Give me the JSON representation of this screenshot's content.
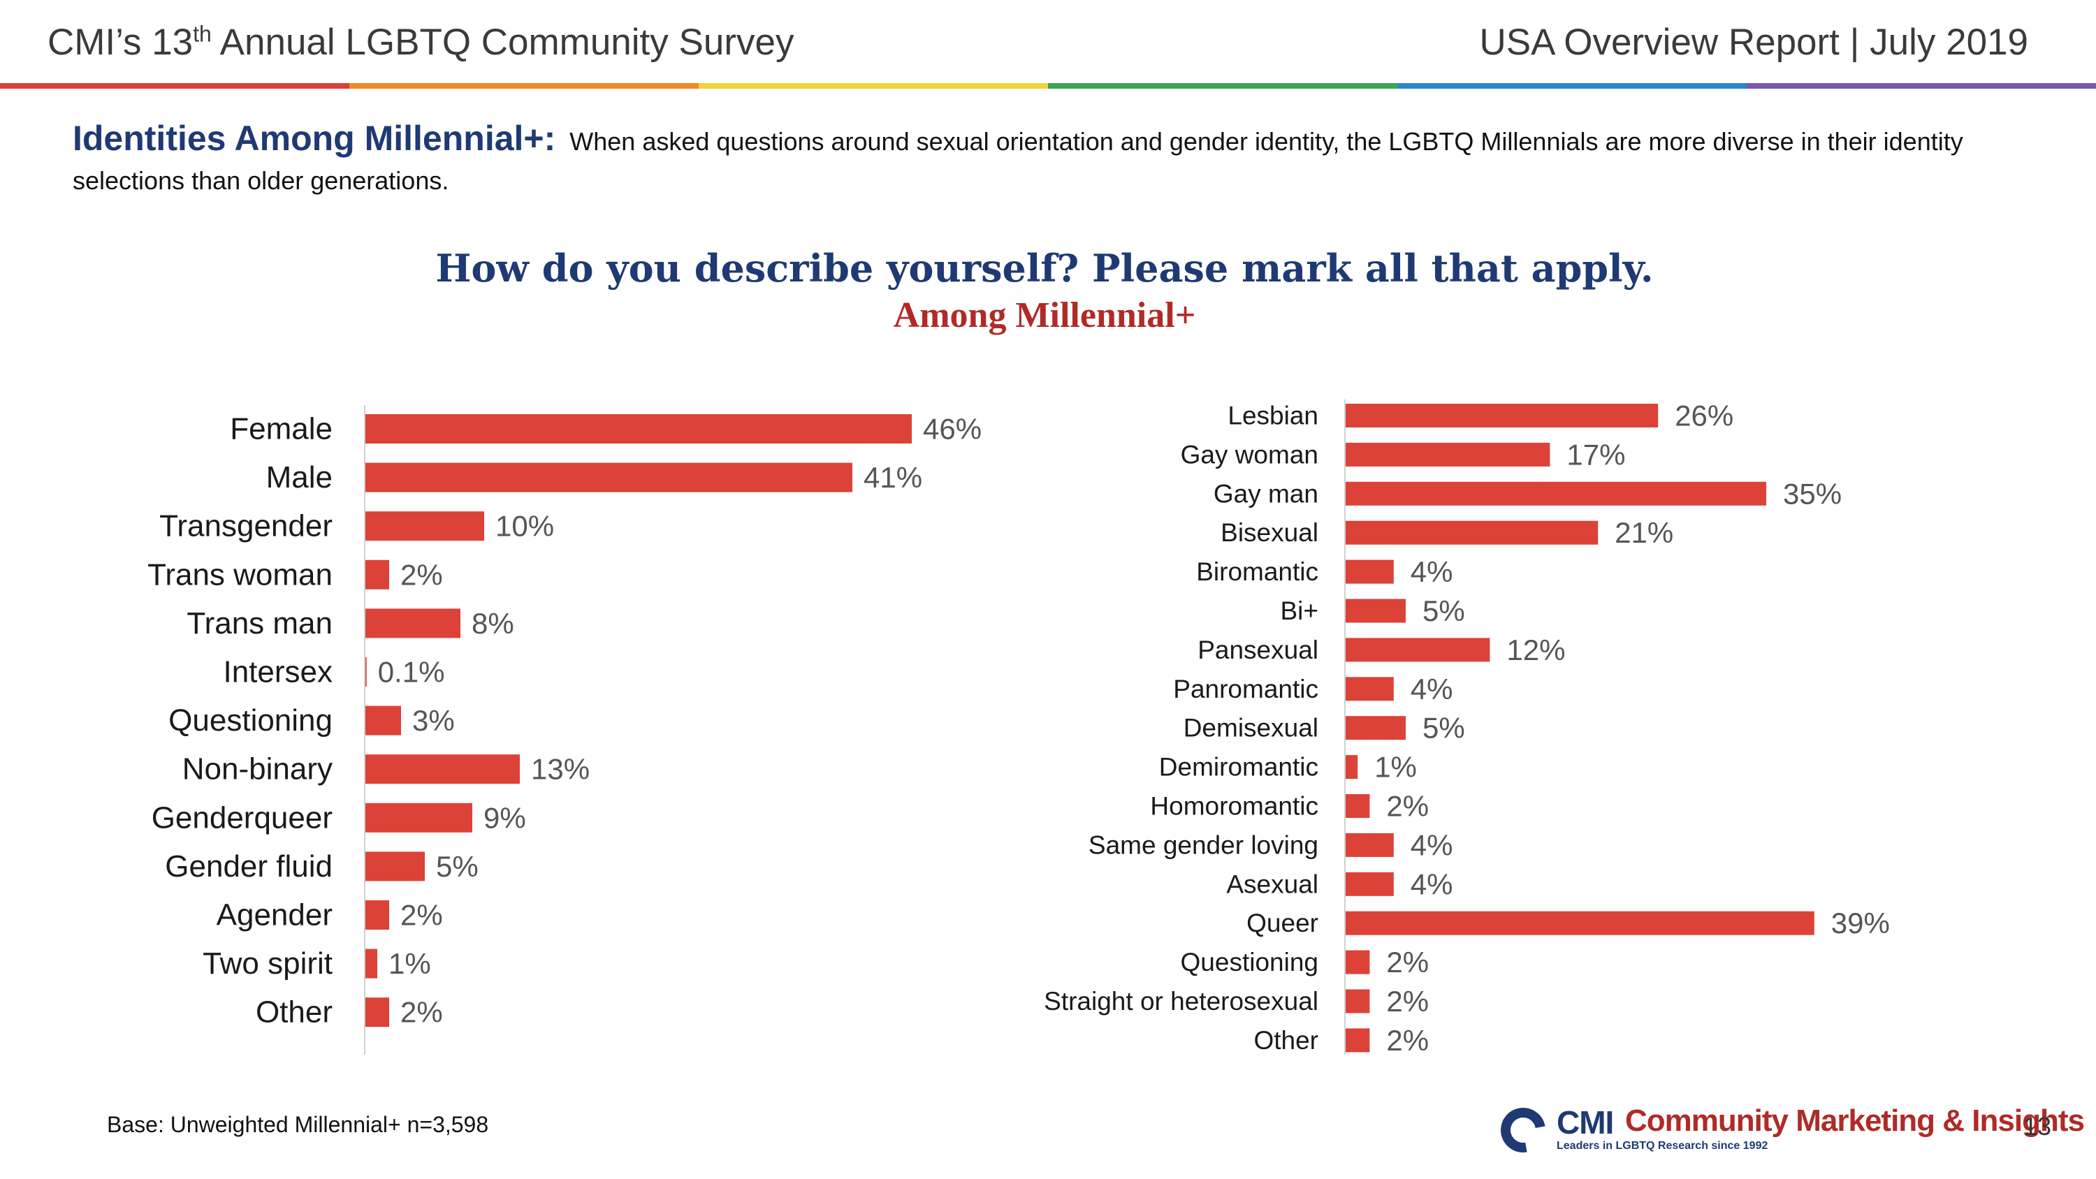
{
  "header": {
    "left_pre": "CMI’s 13",
    "left_sup": "th",
    "left_post": " Annual LGBTQ Community Survey",
    "right": "USA Overview Report | July 2019"
  },
  "colors": {
    "bar": "#dc4238",
    "navy": "#1f3a73",
    "red_text": "#b02a27",
    "rainbow": [
      "#d8403a",
      "#ef8a24",
      "#f3d33c",
      "#3aa853",
      "#2f86c9",
      "#7a59a8"
    ]
  },
  "intro": {
    "lead": "Identities Among Millennial+:",
    "text": "When asked questions around sexual orientation and gender identity, the LGBTQ Millennials are more diverse in their identity selections than older generations."
  },
  "question": {
    "title": "How do you describe yourself? Please mark all that apply.",
    "subtitle": "Among Millennial+"
  },
  "chart_data": [
    {
      "type": "bar",
      "orientation": "horizontal",
      "categories": [
        "Female",
        "Male",
        "Transgender",
        "Trans woman",
        "Trans man",
        "Intersex",
        "Questioning",
        "Non-binary",
        "Genderqueer",
        "Gender fluid",
        "Agender",
        "Two spirit",
        "Other"
      ],
      "values": [
        46,
        41,
        10,
        2,
        8,
        0.1,
        3,
        13,
        9,
        5,
        2,
        1,
        2
      ],
      "labels": [
        "46%",
        "41%",
        "10%",
        "2%",
        "8%",
        "0.1%",
        "3%",
        "13%",
        "9%",
        "5%",
        "2%",
        "1%",
        "2%"
      ],
      "unit": "%"
    },
    {
      "type": "bar",
      "orientation": "horizontal",
      "categories": [
        "Lesbian",
        "Gay woman",
        "Gay man",
        "Bisexual",
        "Biromantic",
        "Bi+",
        "Pansexual",
        "Panromantic",
        "Demisexual",
        "Demiromantic",
        "Homoromantic",
        "Same gender loving",
        "Asexual",
        "Queer",
        "Questioning",
        "Straight or heterosexual",
        "Other"
      ],
      "values": [
        26,
        17,
        35,
        21,
        4,
        5,
        12,
        4,
        5,
        1,
        2,
        4,
        4,
        39,
        2,
        2,
        2
      ],
      "labels": [
        "26%",
        "17%",
        "35%",
        "21%",
        "4%",
        "5%",
        "12%",
        "4%",
        "5%",
        "1%",
        "2%",
        "4%",
        "4%",
        "39%",
        "2%",
        "2%",
        "2%"
      ],
      "unit": "%"
    }
  ],
  "footer": {
    "base": "Base: Unweighted Millennial+ n=3,598",
    "logo_cmi": "CMI",
    "logo_name": "Community Marketing & Insights",
    "logo_tagline": "Leaders in LGBTQ Research since 1992",
    "page_number": "13"
  }
}
